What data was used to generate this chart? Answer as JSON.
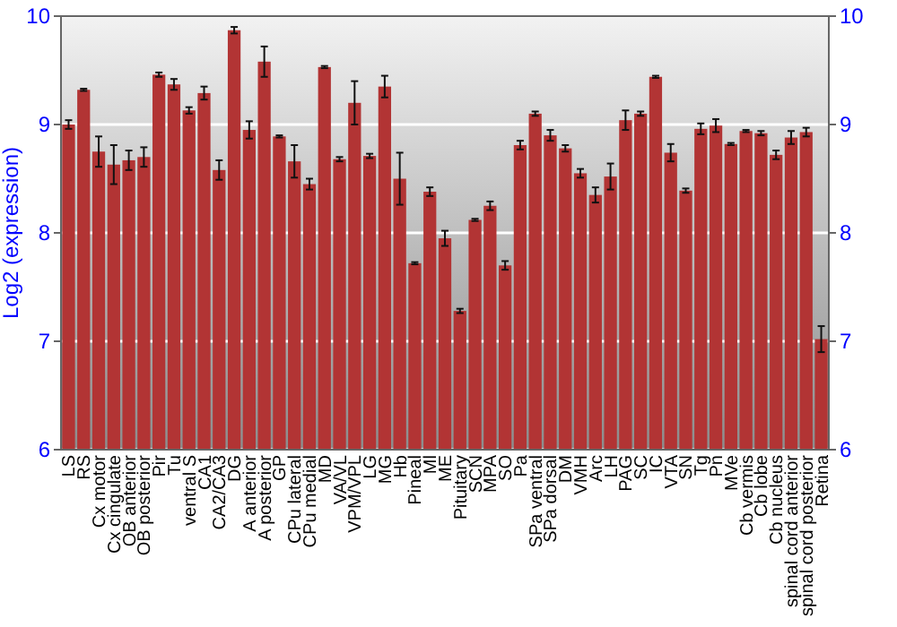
{
  "chart_data": {
    "type": "bar",
    "ylabel": "Log2 (expression)",
    "categories": [
      "LS",
      "RS",
      "Cx motor",
      "Cx cingulate",
      "OB anterior",
      "OB posterior",
      "Pir",
      "Tu",
      "ventral S",
      "CA1",
      "CA2/CA3",
      "DG",
      "A anterior",
      "A posterior",
      "GP",
      "CPu lateral",
      "CPu medial",
      "MD",
      "VA/VL",
      "VPM/VPL",
      "LG",
      "MG",
      "Hb",
      "Pineal",
      "Ml",
      "ME",
      "Pituitary",
      "SCN",
      "MPA",
      "SO",
      "Pa",
      "SPa ventral",
      "SPa dorsal",
      "DM",
      "VMH",
      "Arc",
      "LH",
      "PAG",
      "SC",
      "IC",
      "VTA",
      "SN",
      "Tg",
      "Pn",
      "MVe",
      "Cb vermis",
      "Cb lobe",
      "Cb nucleus",
      "spinal cord anterior",
      "spinal cord posterior",
      "Retina"
    ],
    "values": [
      9.0,
      9.32,
      8.75,
      8.63,
      8.67,
      8.7,
      9.46,
      9.37,
      9.13,
      9.29,
      8.58,
      9.87,
      8.95,
      9.58,
      8.89,
      8.66,
      8.45,
      9.53,
      8.68,
      9.2,
      8.71,
      9.35,
      8.5,
      7.72,
      8.38,
      7.95,
      7.28,
      8.12,
      8.25,
      7.7,
      8.81,
      9.1,
      8.9,
      8.78,
      8.55,
      8.35,
      8.52,
      9.04,
      9.1,
      9.44,
      8.74,
      8.39,
      8.96,
      8.99,
      8.82,
      8.94,
      8.92,
      8.72,
      8.88,
      8.93,
      7.02
    ],
    "errors": [
      0.04,
      0.01,
      0.14,
      0.18,
      0.09,
      0.09,
      0.02,
      0.05,
      0.03,
      0.06,
      0.09,
      0.03,
      0.08,
      0.14,
      0.01,
      0.15,
      0.05,
      0.01,
      0.02,
      0.2,
      0.02,
      0.1,
      0.24,
      0.01,
      0.04,
      0.07,
      0.02,
      0.01,
      0.04,
      0.04,
      0.04,
      0.02,
      0.05,
      0.03,
      0.04,
      0.07,
      0.12,
      0.09,
      0.02,
      0.01,
      0.08,
      0.02,
      0.05,
      0.06,
      0.01,
      0.01,
      0.02,
      0.04,
      0.06,
      0.04,
      0.12
    ],
    "color": "#b23434",
    "ylim": [
      6,
      10
    ],
    "yticks": [
      6,
      7,
      8,
      9,
      10
    ],
    "y2lim": [
      6,
      10
    ],
    "y2ticks": [
      6,
      7,
      8,
      9,
      10
    ],
    "grid": "y"
  }
}
